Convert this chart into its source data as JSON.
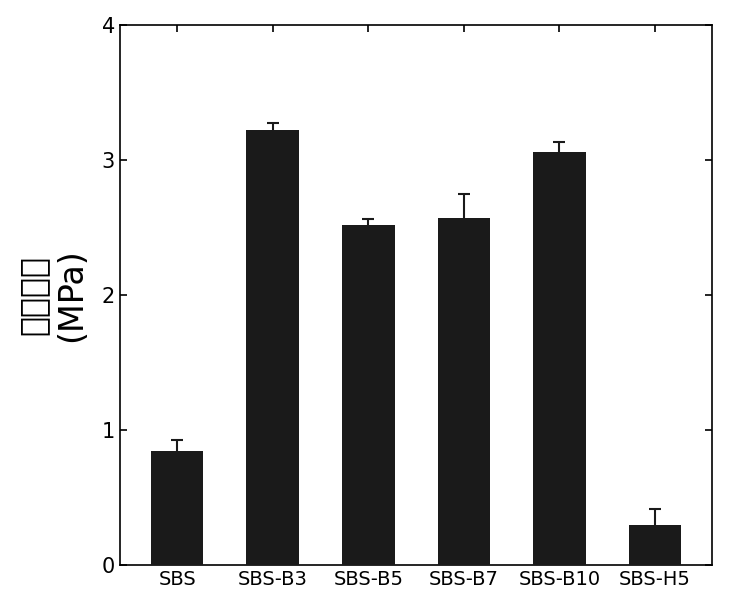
{
  "categories": [
    "SBS",
    "SBS-B3",
    "SBS-B5",
    "SBS-B7",
    "SBS-B10",
    "SBS-H5"
  ],
  "values": [
    0.85,
    3.22,
    2.52,
    2.57,
    3.06,
    0.3
  ],
  "errors": [
    0.08,
    0.05,
    0.04,
    0.18,
    0.07,
    0.12
  ],
  "bar_color": "#1a1a1a",
  "bar_width": 0.55,
  "ylabel_chinese": "剪切强度",
  "ylabel_units": "(MPa)",
  "ylim": [
    0,
    4.0
  ],
  "yticks": [
    0,
    1,
    2,
    3,
    4
  ],
  "background_color": "#ffffff",
  "ylabel_fontsize": 24,
  "tick_fontsize": 15,
  "xlabel_fontsize": 14,
  "error_capsize": 4,
  "error_color": "#1a1a1a",
  "error_linewidth": 1.5
}
